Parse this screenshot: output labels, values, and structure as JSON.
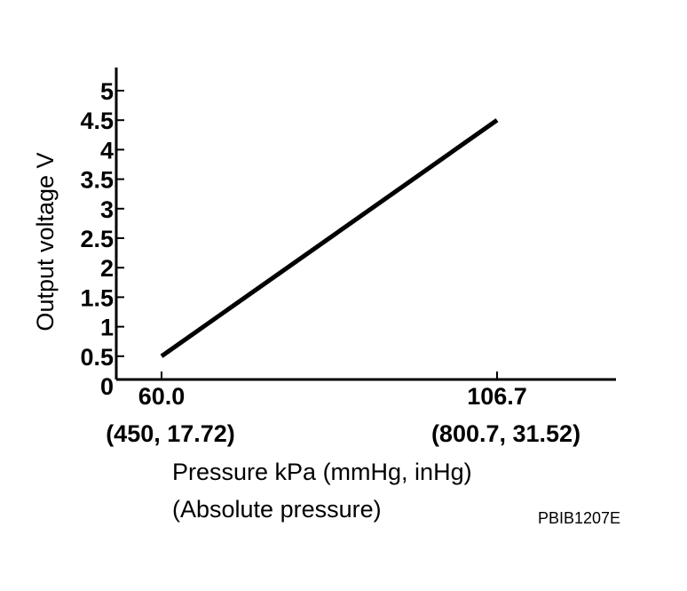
{
  "chart_data": {
    "type": "line",
    "title": "",
    "ylabel": "Output voltage V",
    "xlabel": "Pressure kPa (mmHg, inHg)",
    "xlabel_sub": "(Absolute pressure)",
    "ylim": [
      0,
      5
    ],
    "yticks": [
      "0",
      "0.5",
      "1",
      "1.5",
      "2",
      "2.5",
      "3",
      "3.5",
      "4",
      "4.5",
      "5"
    ],
    "x_ticks": [
      {
        "value": 60.0,
        "label": "60.0",
        "sublabel": "(450, 17.72)"
      },
      {
        "value": 106.7,
        "label": "106.7",
        "sublabel": "(800.7, 31.52)"
      }
    ],
    "series": [
      {
        "points": [
          {
            "x": 60.0,
            "y": 0.5
          },
          {
            "x": 106.7,
            "y": 4.5
          }
        ]
      }
    ],
    "grid": false,
    "line_color": "#000000"
  },
  "figure_code": "PBIB1207E"
}
